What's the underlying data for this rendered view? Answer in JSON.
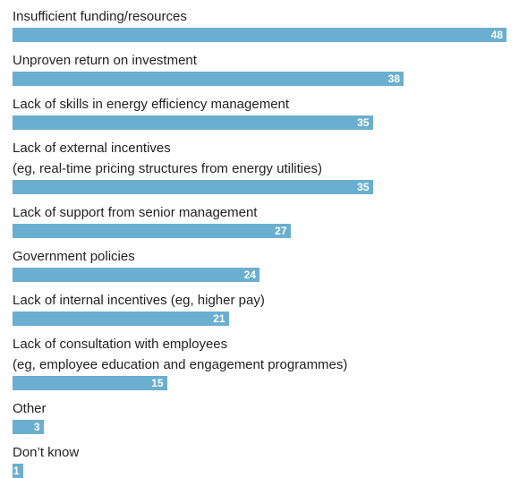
{
  "chart_data": {
    "type": "bar",
    "orientation": "horizontal",
    "color": "#6aafcf",
    "categories": [
      "Insufficient funding/resources",
      "Unproven return on investment",
      "Lack of skills in energy efficiency management",
      "Lack of external incentives\n(eg, real-time pricing structures from energy utilities)",
      "Lack of support from senior management",
      "Government policies",
      "Lack of internal incentives (eg, higher pay)",
      "Lack of consultation with employees\n(eg, employee education and engagement programmes)",
      "Other",
      "Don’t know"
    ],
    "values": [
      48,
      38,
      35,
      35,
      27,
      24,
      21,
      15,
      3,
      1
    ]
  }
}
